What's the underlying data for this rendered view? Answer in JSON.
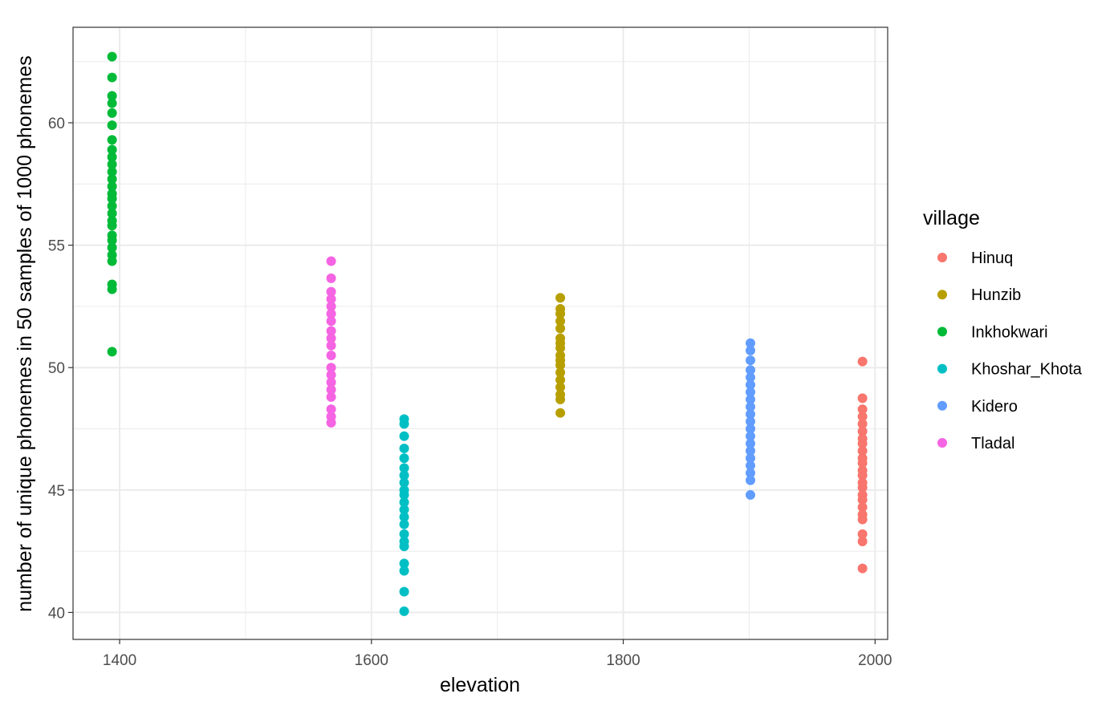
{
  "chart_data": {
    "type": "scatter",
    "title": "",
    "xlabel": "elevation",
    "ylabel": "number of unique phonemes in 50 samples of 1000 phonemes",
    "xlim": [
      1363,
      2010
    ],
    "ylim": [
      38.9,
      63.9
    ],
    "x_ticks": [
      1400,
      1600,
      1800,
      2000
    ],
    "x_tick_labels": [
      "1400",
      "1600",
      "1800",
      "2000"
    ],
    "x_minor_ticks": [
      1500,
      1700,
      1900
    ],
    "y_ticks": [
      40,
      45,
      50,
      55,
      60
    ],
    "y_tick_labels": [
      "40",
      "45",
      "50",
      "55",
      "60"
    ],
    "y_minor_ticks": [
      42.5,
      47.5,
      52.5,
      57.5,
      62.5
    ],
    "grid": true,
    "legend": {
      "title": "village",
      "position": "right"
    },
    "series": [
      {
        "name": "Hinuq",
        "color": "#F8766D",
        "x": 1990,
        "y": [
          50.25,
          48.75,
          48.3,
          48.0,
          47.7,
          47.4,
          47.1,
          46.9,
          46.6,
          46.3,
          46.1,
          45.8,
          45.6,
          45.3,
          45.1,
          44.8,
          44.6,
          44.3,
          44.0,
          43.8,
          43.2,
          42.9,
          41.8
        ]
      },
      {
        "name": "Hunzib",
        "color": "#B79F00",
        "x": 1750,
        "y": [
          52.85,
          52.4,
          52.2,
          51.9,
          51.6,
          51.2,
          51.0,
          50.8,
          50.5,
          50.3,
          50.1,
          49.8,
          49.5,
          49.2,
          48.9,
          48.7,
          48.15
        ]
      },
      {
        "name": "Inkhokwari",
        "color": "#00BA38",
        "x": 1394,
        "y": [
          62.7,
          61.85,
          61.1,
          60.8,
          60.4,
          59.9,
          59.3,
          58.9,
          58.6,
          58.3,
          58.0,
          57.7,
          57.4,
          57.1,
          56.9,
          56.6,
          56.3,
          56.0,
          55.8,
          55.4,
          55.2,
          54.9,
          54.6,
          54.35,
          53.4,
          53.2,
          50.65
        ]
      },
      {
        "name": "Khoshar_Khota",
        "color": "#00BFC4",
        "x": 1626,
        "y": [
          47.9,
          47.7,
          47.2,
          46.7,
          46.3,
          45.9,
          45.6,
          45.3,
          45.0,
          44.8,
          44.5,
          44.2,
          43.9,
          43.6,
          43.2,
          42.9,
          42.7,
          42.0,
          41.7,
          40.85,
          40.05
        ]
      },
      {
        "name": "Kidero",
        "color": "#619CFF",
        "x": 1901,
        "y": [
          51.0,
          50.7,
          50.3,
          49.9,
          49.6,
          49.3,
          49.0,
          48.7,
          48.4,
          48.1,
          47.8,
          47.5,
          47.2,
          46.9,
          46.6,
          46.3,
          46.0,
          45.7,
          45.4,
          44.8
        ]
      },
      {
        "name": "Tladal",
        "color": "#F564E3",
        "x": 1568,
        "y": [
          54.35,
          53.65,
          53.1,
          52.8,
          52.5,
          52.2,
          51.9,
          51.5,
          51.2,
          50.9,
          50.5,
          50.0,
          49.7,
          49.4,
          49.1,
          48.8,
          48.3,
          48.0,
          47.75
        ]
      }
    ]
  }
}
